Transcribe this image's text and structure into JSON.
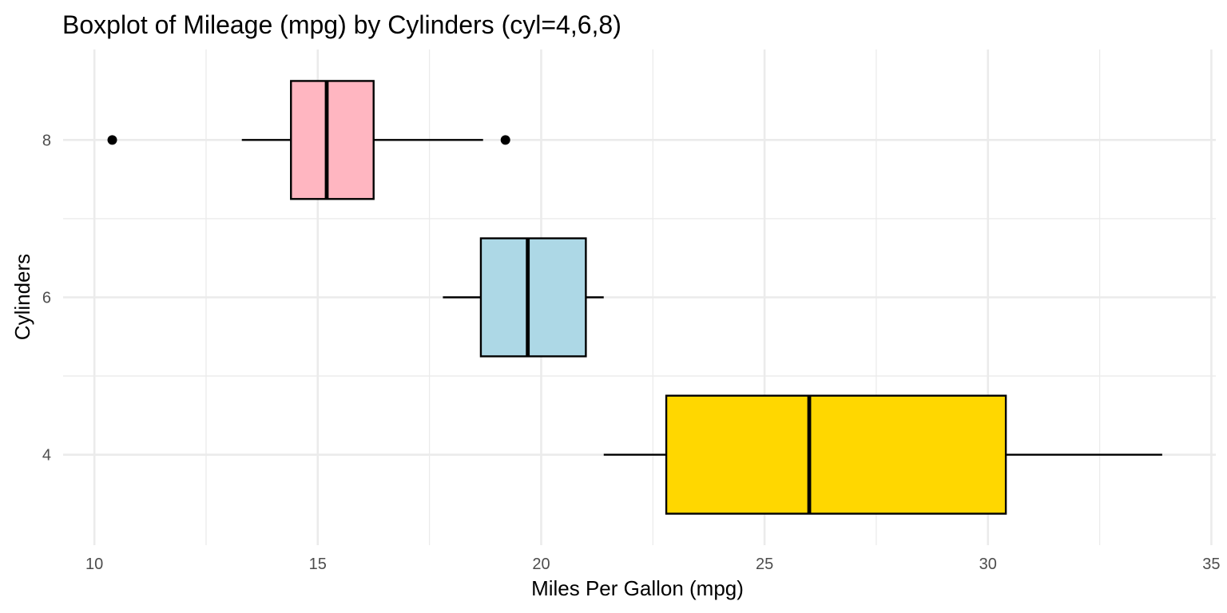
{
  "chart_data": {
    "type": "boxplot",
    "orientation": "horizontal",
    "title": "Boxplot of Mileage (mpg) by Cylinders (cyl=4,6,8)",
    "xlabel": "Miles Per Gallon (mpg)",
    "ylabel": "Cylinders",
    "xlim": [
      9.3,
      35.1
    ],
    "ylim": [
      2.85,
      9.15
    ],
    "x_ticks": [
      10,
      15,
      20,
      25,
      30,
      35
    ],
    "y_ticks": [
      4,
      6,
      8
    ],
    "grid": true,
    "legend": "none",
    "groups": [
      {
        "cyl": 8,
        "label": "8",
        "color": "#FFB6C1",
        "whisker_low": 13.3,
        "q1": 14.4,
        "median": 15.2,
        "q3": 16.25,
        "whisker_high": 18.7,
        "outliers": [
          10.4,
          19.2
        ]
      },
      {
        "cyl": 6,
        "label": "6",
        "color": "#ADD8E6",
        "whisker_low": 17.8,
        "q1": 18.65,
        "median": 19.7,
        "q3": 21.0,
        "whisker_high": 21.4,
        "outliers": []
      },
      {
        "cyl": 4,
        "label": "4",
        "color": "#FFD700",
        "whisker_low": 21.4,
        "q1": 22.8,
        "median": 26.0,
        "q3": 30.4,
        "whisker_high": 33.9,
        "outliers": []
      }
    ]
  }
}
